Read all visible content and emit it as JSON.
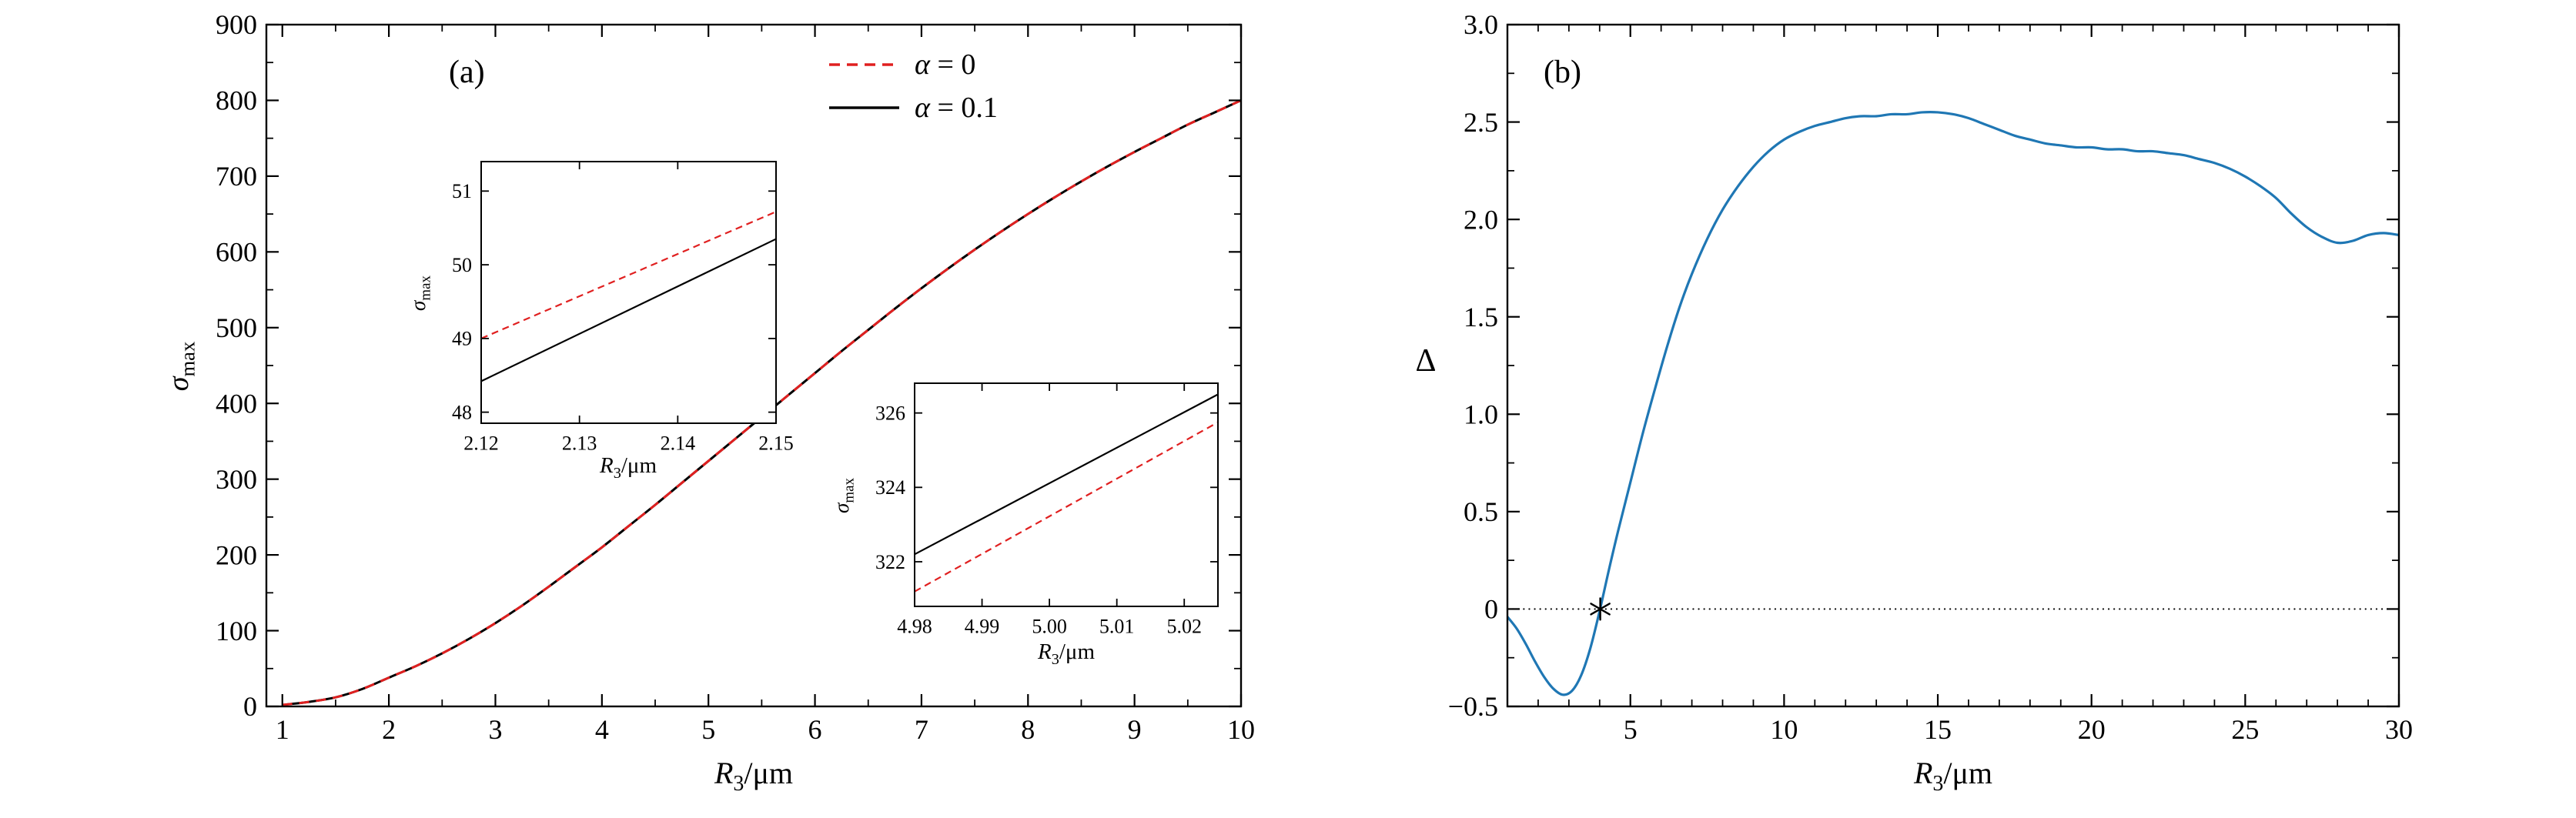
{
  "panels": {
    "a": {
      "label": "(a)",
      "xlabel": {
        "var": "R",
        "sub": "3",
        "unit": "/μm"
      },
      "ylabel": {
        "var": "σ",
        "sub": "max",
        "unit": ""
      },
      "legend": [
        {
          "sym": "α",
          "rest": " = 0",
          "color": "#e02020",
          "dashed": true
        },
        {
          "sym": "α",
          "rest": " = 0.1",
          "color": "#000000",
          "dashed": false
        }
      ]
    },
    "b": {
      "label": "(b)",
      "xlabel": {
        "var": "R",
        "sub": "3",
        "unit": "/μm"
      },
      "ylabel": {
        "var": "Δ",
        "sub": "",
        "unit": ""
      }
    }
  },
  "chart_data": [
    {
      "id": "a_main",
      "type": "line",
      "xlabel": "R_3/μm",
      "ylabel": "σ_max",
      "xlim": [
        0.85,
        10
      ],
      "ylim": [
        0,
        900
      ],
      "xticks": [
        1,
        2,
        3,
        4,
        5,
        6,
        7,
        8,
        9,
        10
      ],
      "yticks": [
        0,
        100,
        200,
        300,
        400,
        500,
        600,
        700,
        800,
        900
      ],
      "xminor": 0.5,
      "yminor": 50,
      "series": [
        {
          "name": "α = 0.1",
          "color": "#000000",
          "width": 3,
          "dash": null,
          "x": [
            1,
            1.25,
            1.5,
            1.75,
            2,
            2.25,
            2.5,
            2.75,
            3,
            3.25,
            3.5,
            3.75,
            4,
            4.25,
            4.5,
            4.75,
            5,
            5.25,
            5.5,
            5.75,
            6,
            6.25,
            6.5,
            6.75,
            7,
            7.25,
            7.5,
            7.75,
            8,
            8.25,
            8.5,
            8.75,
            9,
            9.25,
            9.5,
            9.75,
            10
          ],
          "y": [
            2,
            6,
            12,
            23,
            38,
            53,
            70,
            89,
            110,
            133,
            158,
            184,
            210,
            238,
            266,
            295,
            324,
            353,
            382,
            411,
            440,
            469,
            497,
            525,
            552,
            578,
            603,
            627,
            650,
            672,
            693,
            713,
            732,
            750,
            768,
            784,
            800
          ]
        },
        {
          "name": "α = 0",
          "color": "#e02020",
          "width": 3,
          "dash": [
            13,
            9
          ],
          "x": [
            1,
            1.25,
            1.5,
            1.75,
            2,
            2.25,
            2.5,
            2.75,
            3,
            3.25,
            3.5,
            3.75,
            4,
            4.25,
            4.5,
            4.75,
            5,
            5.25,
            5.5,
            5.75,
            6,
            6.25,
            6.5,
            6.75,
            7,
            7.25,
            7.5,
            7.75,
            8,
            8.25,
            8.5,
            8.75,
            9,
            9.25,
            9.5,
            9.75,
            10
          ],
          "y": [
            2,
            6,
            12,
            23,
            38,
            53,
            70,
            89,
            110,
            133,
            158,
            184,
            210,
            238,
            266,
            295,
            324,
            353,
            382,
            411,
            440,
            469,
            497,
            525,
            552,
            578,
            603,
            627,
            650,
            672,
            693,
            713,
            732,
            750,
            768,
            784,
            800
          ]
        }
      ]
    },
    {
      "id": "a_inset1",
      "type": "line",
      "xlabel": "R_3/μm",
      "ylabel": "σ_max",
      "xlim": [
        2.12,
        2.15
      ],
      "ylim": [
        47.85,
        51.4
      ],
      "xticks": [
        2.12,
        2.13,
        2.14,
        2.15
      ],
      "yticks": [
        48,
        49,
        50,
        51
      ],
      "series": [
        {
          "name": "α = 0",
          "color": "#e02020",
          "width": 2.2,
          "dash": [
            9,
            6
          ],
          "x": [
            2.12,
            2.15
          ],
          "y": [
            49.0,
            50.72
          ]
        },
        {
          "name": "α = 0.1",
          "color": "#000000",
          "width": 2.2,
          "dash": null,
          "x": [
            2.12,
            2.15
          ],
          "y": [
            48.42,
            50.35
          ]
        }
      ]
    },
    {
      "id": "a_inset2",
      "type": "line",
      "xlabel": "R_3/μm",
      "ylabel": "σ_max",
      "xlim": [
        4.98,
        5.025
      ],
      "ylim": [
        320.8,
        326.8
      ],
      "xticks": [
        4.98,
        4.99,
        5.0,
        5.01,
        5.02
      ],
      "xtick_labels": [
        "4.98",
        "4.99",
        "5.00",
        "5.01",
        "5.02"
      ],
      "yticks": [
        322,
        324,
        326
      ],
      "series": [
        {
          "name": "α = 0.1",
          "color": "#000000",
          "width": 2.2,
          "dash": null,
          "x": [
            4.98,
            5.025
          ],
          "y": [
            322.2,
            326.5
          ]
        },
        {
          "name": "α = 0",
          "color": "#e02020",
          "width": 2.2,
          "dash": [
            9,
            6
          ],
          "x": [
            4.98,
            5.025
          ],
          "y": [
            321.2,
            325.75
          ]
        }
      ]
    },
    {
      "id": "b_main",
      "type": "line",
      "xlabel": "R_3/μm",
      "ylabel": "Δ",
      "xlim": [
        1,
        30
      ],
      "ylim": [
        -0.5,
        3.0
      ],
      "xticks": [
        5,
        10,
        15,
        20,
        25,
        30
      ],
      "yticks": [
        -0.5,
        0,
        0.5,
        1,
        1.5,
        2,
        2.5,
        3
      ],
      "ytick_labels": [
        "−0.5",
        "0",
        "0.5",
        "1.0",
        "1.5",
        "2.0",
        "2.5",
        "3.0"
      ],
      "xminor": 1,
      "yminor": 0.25,
      "hlines": [
        {
          "y": 0,
          "color": "#000000",
          "width": 2.2,
          "dash": [
            0.1,
            7
          ]
        }
      ],
      "markers": [
        {
          "x": 4.02,
          "y": 0,
          "type": "asterisk",
          "color": "#000000",
          "size": 14
        }
      ],
      "series": [
        {
          "name": "Δ",
          "color": "#1f77b4",
          "width": 3.2,
          "dash": null,
          "x": [
            1,
            1.3,
            1.6,
            1.9,
            2.2,
            2.5,
            2.8,
            3.1,
            3.4,
            3.7,
            4,
            4.3,
            4.6,
            5,
            5.4,
            5.8,
            6.2,
            6.6,
            7,
            7.5,
            8,
            8.5,
            9,
            9.5,
            10,
            10.5,
            11,
            11.5,
            12,
            12.5,
            13,
            13.5,
            14,
            14.5,
            15,
            15.5,
            16,
            16.5,
            17,
            17.5,
            18,
            18.5,
            19,
            19.5,
            20,
            20.5,
            21,
            21.5,
            22,
            22.5,
            23,
            23.5,
            24,
            24.5,
            25,
            25.5,
            26,
            26.5,
            27,
            27.5,
            28,
            28.5,
            29,
            29.5,
            30
          ],
          "y": [
            -0.04,
            -0.1,
            -0.18,
            -0.27,
            -0.35,
            -0.41,
            -0.44,
            -0.42,
            -0.34,
            -0.2,
            -0.01,
            0.2,
            0.4,
            0.65,
            0.9,
            1.13,
            1.35,
            1.55,
            1.72,
            1.9,
            2.05,
            2.17,
            2.27,
            2.35,
            2.41,
            2.45,
            2.48,
            2.5,
            2.52,
            2.53,
            2.53,
            2.54,
            2.54,
            2.55,
            2.55,
            2.54,
            2.52,
            2.49,
            2.46,
            2.43,
            2.41,
            2.39,
            2.38,
            2.37,
            2.37,
            2.36,
            2.36,
            2.35,
            2.35,
            2.34,
            2.33,
            2.31,
            2.29,
            2.26,
            2.22,
            2.17,
            2.11,
            2.03,
            1.96,
            1.91,
            1.88,
            1.89,
            1.92,
            1.93,
            1.92
          ]
        }
      ]
    }
  ]
}
